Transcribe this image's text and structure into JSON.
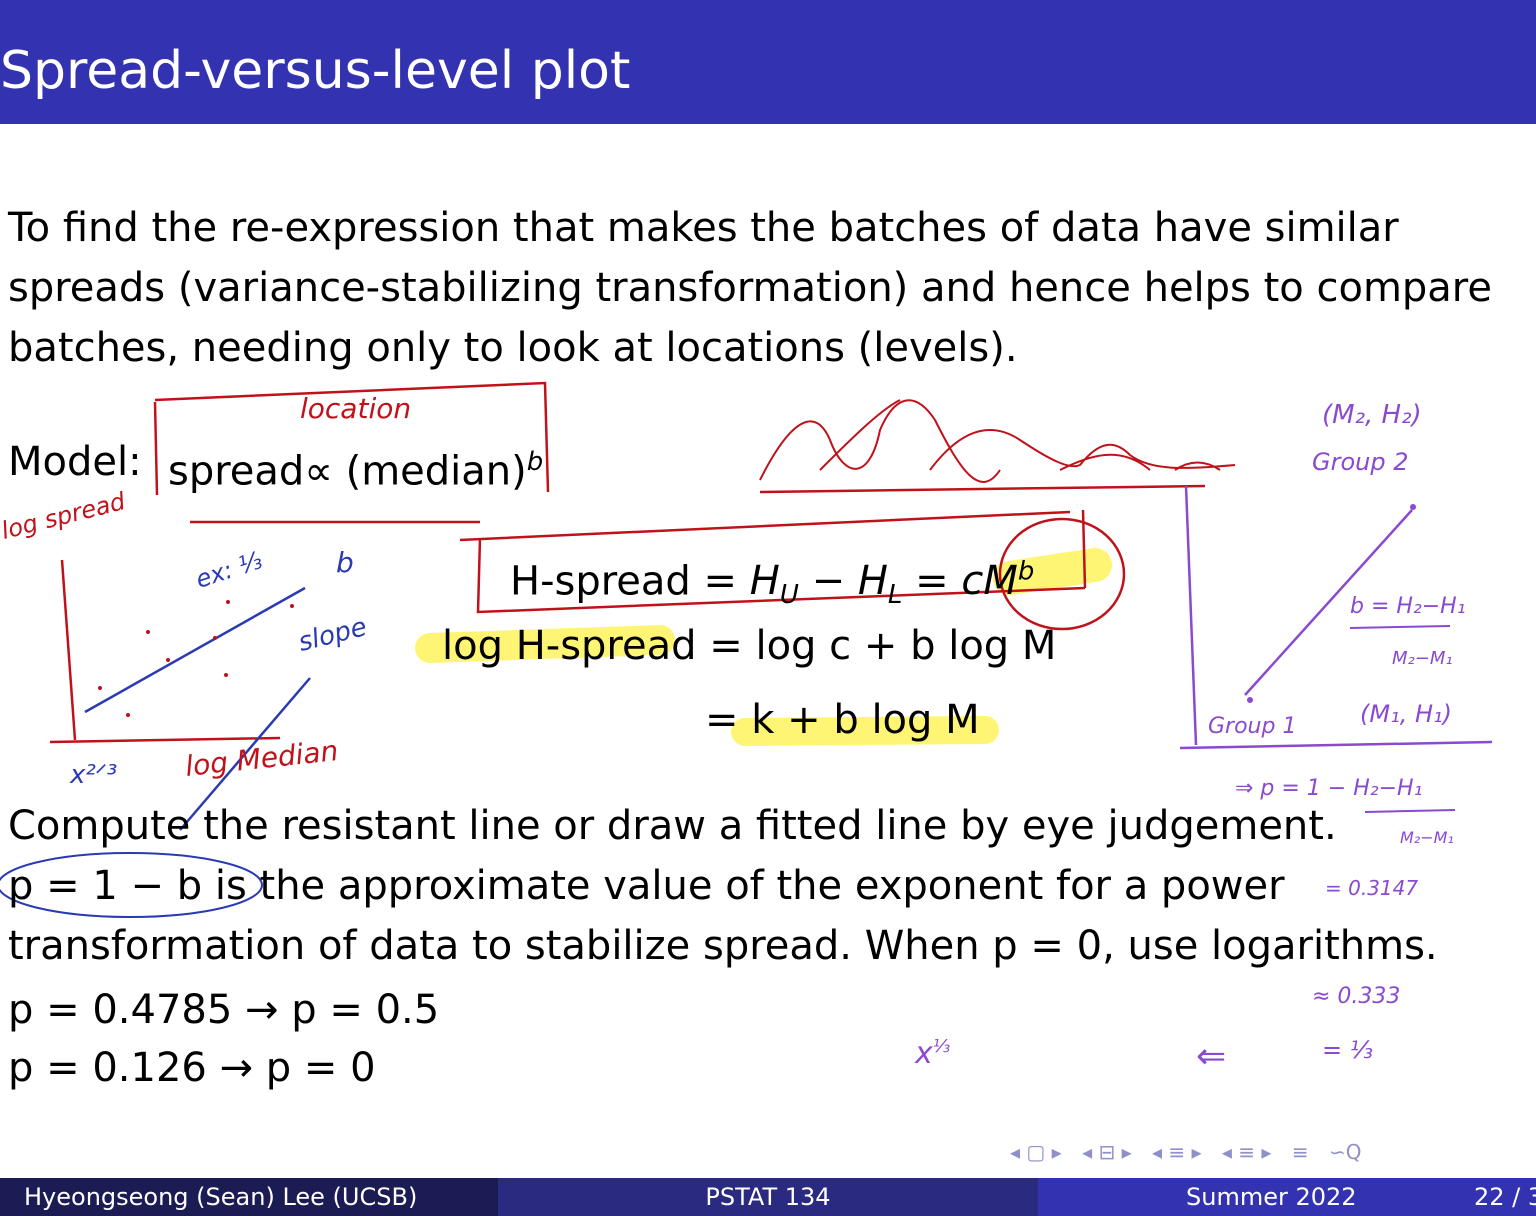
{
  "title": "Spread-versus-level plot",
  "body": {
    "intro": [
      "To find the re-expression that makes the batches of data have similar",
      "spreads (variance-stabilizing transformation) and hence helps to compare",
      "batches, needing only to look at locations (levels)."
    ],
    "model_label": "Model:",
    "model_expr": "spread∝ (median)",
    "model_exp": "b",
    "eq1_lhs": "H-spread",
    "eq1_rhs": "= H",
    "eq2_lhs": "log H-spread",
    "eq2_rhs": "= log c + b log M",
    "eq3_rhs": "= k + b log M",
    "compute_line": "Compute the resistant line or draw a fitted line by eye judgement.",
    "p_line_1": "p = 1 − b is the approximate value of the exponent for a power",
    "p_line_2": "transformation of data to stabilize spread. When p = 0, use logarithms.",
    "example_1": "p = 0.4785 → p = 0.5",
    "example_2": "p = 0.126 → p = 0"
  },
  "annotations": {
    "location": "location",
    "log_spread": "log spread",
    "ex": "ex: ⅓",
    "b": "b",
    "slope": "slope",
    "log_median": "log Median",
    "x_two_thirds": "x²ᐟ³",
    "m2h2": "(M₂, H₂)",
    "group2": "Group 2",
    "b_formula_num": "b = H₂−H₁",
    "b_formula_den": "M₂−M₁",
    "group1": "Group 1",
    "m1h1": "(M₁, H₁)",
    "p_formula": "⇒ p = 1 − H₂−H₁",
    "p_formula_den": "M₂−M₁",
    "approx_value": "= 0.3147",
    "approx_third": "≈ 0.333",
    "equals_third": "= ⅓",
    "x_third": "x",
    "x_third_exp": "⅓",
    "left_arrow": "⇐"
  },
  "colors": {
    "title_bar": "#3333b2",
    "red_ink": "#c0121b",
    "blue_ink": "#2a3ab2",
    "purple_ink": "#8a4ad0",
    "highlight": "#fff35c"
  },
  "nav": {
    "icons": [
      "◂ ▢ ▸",
      "◂ ⊟ ▸",
      "◂ ≡ ▸",
      "◂ ≡ ▸",
      "≡",
      "∽Q"
    ]
  },
  "footer": {
    "author": "Hyeongseong (Sean) Lee  (UCSB)",
    "course": "PSTAT 134",
    "term": "Summer 2022",
    "page": "22 / 3"
  }
}
